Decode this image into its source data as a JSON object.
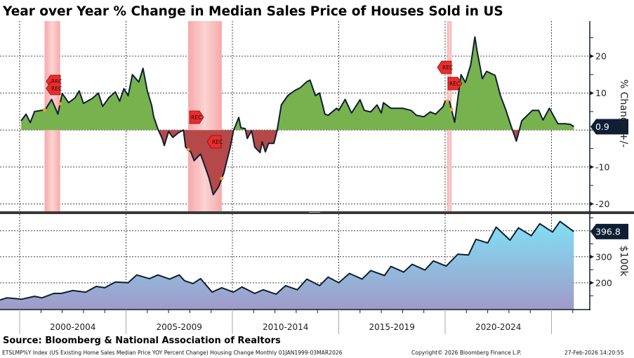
{
  "chart_data": [
    {
      "type": "area",
      "title": "Year over Year % Change in Median Sales Price of Houses Sold in US",
      "ylabel": "% Change +/-",
      "ylim": [
        -22,
        29.5
      ],
      "yticks": [
        -20,
        -10,
        10,
        20
      ],
      "last_value_label": "0.9",
      "positive_color": "#77b24f",
      "negative_color": "#b5494a",
      "line_color": "#0f1e2e",
      "recession_marker_label": "REC",
      "recessions": [
        [
          2001.17,
          2001.9
        ],
        [
          2007.92,
          2009.5
        ],
        [
          2020.1,
          2020.3
        ]
      ],
      "x": [
        2000.07,
        2000.3,
        2000.5,
        2000.7,
        2001.2,
        2001.5,
        2001.8,
        2002.0,
        2002.3,
        2002.6,
        2002.8,
        2003.0,
        2003.4,
        2003.7,
        2003.9,
        2004.2,
        2004.5,
        2004.7,
        2004.9,
        2005.1,
        2005.3,
        2005.6,
        2005.8,
        2006.0,
        2006.2,
        2006.3,
        2006.5,
        2006.7,
        2006.8,
        2007.0,
        2007.2,
        2007.45,
        2007.7,
        2007.8,
        2008.05,
        2008.2,
        2008.5,
        2008.7,
        2008.9,
        2009.1,
        2009.35,
        2009.6,
        2009.9,
        2010.05,
        2010.3,
        2010.4,
        2010.6,
        2010.7,
        2010.9,
        2011.05,
        2011.3,
        2011.4,
        2011.55,
        2011.7,
        2011.95,
        2012.1,
        2012.3,
        2012.6,
        2012.9,
        2013.2,
        2013.5,
        2013.65,
        2013.9,
        2014.1,
        2014.35,
        2014.5,
        2014.9,
        2015.0,
        2015.3,
        2015.6,
        2016.0,
        2016.2,
        2016.5,
        2016.8,
        2017.0,
        2017.1,
        2017.45,
        2018.0,
        2018.4,
        2018.65,
        2019.0,
        2019.3,
        2019.55,
        2019.9,
        2020.0,
        2020.2,
        2020.45,
        2020.6,
        2020.75,
        2020.95,
        2021.2,
        2021.4,
        2021.5,
        2021.75,
        2021.95,
        2022.35,
        2022.6,
        2022.85,
        2023.1,
        2023.35,
        2023.6,
        2024.1,
        2024.4,
        2024.6,
        2024.9,
        2025.3,
        2025.65,
        2025.9,
        2026.05
      ],
      "values": [
        2.5,
        4.3,
        2,
        5,
        5.5,
        8.3,
        4.3,
        9.9,
        7.4,
        8.7,
        10.6,
        7.2,
        8.5,
        10,
        6.4,
        8.8,
        10.3,
        7.8,
        11.2,
        9.3,
        15,
        13,
        16.7,
        10.6,
        6.8,
        3.6,
        0.2,
        -2.3,
        -4.2,
        -0.4,
        -2,
        -0.8,
        0,
        -4.6,
        -6,
        -8.3,
        -6.5,
        -9.7,
        -13,
        -17.5,
        -15.4,
        -11.6,
        -4.6,
        -0.2,
        3.4,
        0.6,
        0.4,
        -2.3,
        -0.2,
        -4.6,
        -6.1,
        -3.2,
        -5.9,
        -3.6,
        -3.6,
        -0.2,
        6.8,
        9.3,
        10.6,
        11.5,
        13.1,
        13.5,
        9.3,
        10,
        4.3,
        4,
        5.9,
        5.3,
        8.3,
        4.6,
        8.2,
        5.3,
        4.9,
        6.8,
        4.6,
        7.4,
        5.9,
        5.9,
        5.3,
        4,
        3.6,
        4.9,
        4.3,
        6.3,
        7.8,
        7.8,
        2.1,
        8.7,
        15,
        12.9,
        17.6,
        25.2,
        21.4,
        13.9,
        15.9,
        14.8,
        9.3,
        5.5,
        1.1,
        -3,
        2.5,
        5.3,
        5.3,
        2.7,
        5.9,
        1.7,
        1.7,
        1.5,
        0.9
      ]
    },
    {
      "type": "area",
      "ylabel": "$100k",
      "ylim": [
        97,
        464
      ],
      "yticks": [
        200,
        300
      ],
      "last_value_label": "396.8",
      "fill_top_color": "#80e0f5",
      "fill_bottom_color": "#a09ac8",
      "x": [
        1999.0,
        1999.4,
        2000.1,
        2000.7,
        2001.05,
        2001.6,
        2001.95,
        2002.5,
        2003.1,
        2003.6,
        2004.0,
        2004.5,
        2005.1,
        2005.5,
        2006.1,
        2006.5,
        2007.05,
        2007.5,
        2007.75,
        2008.15,
        2008.5,
        2009.05,
        2009.5,
        2010.05,
        2010.45,
        2011.05,
        2011.45,
        2012.05,
        2012.5,
        2013.05,
        2013.5,
        2014.1,
        2014.5,
        2015.0,
        2015.5,
        2016.1,
        2016.5,
        2017.15,
        2017.45,
        2018.05,
        2018.45,
        2019.05,
        2019.45,
        2020.05,
        2020.6,
        2021.1,
        2021.45,
        2022.0,
        2022.4,
        2023.05,
        2023.45,
        2024.05,
        2024.45,
        2025.05,
        2025.4,
        2026.05
      ],
      "values": [
        134,
        142,
        137,
        148,
        142,
        159,
        159,
        170,
        164,
        186,
        181,
        203,
        200,
        230,
        216,
        230,
        214,
        230,
        208,
        197,
        216,
        164,
        181,
        164,
        184,
        159,
        173,
        156,
        189,
        173,
        214,
        189,
        222,
        200,
        236,
        214,
        247,
        228,
        263,
        241,
        271,
        249,
        284,
        264,
        310,
        307,
        367,
        353,
        414,
        364,
        411,
        381,
        427,
        395,
        436,
        396.8
      ]
    }
  ],
  "x_axis": {
    "categories": [
      "2000-2004",
      "2005-2009",
      "2010-2014",
      "2015-2019",
      "2020-2024"
    ]
  },
  "footer": {
    "source": "Source: Bloomberg & National Association of Realtors",
    "description": "ETSLMP%Y Index (US Existing Home Sales Median Price YOY Percent Change) Housing Change Monthly 01JAN1999-03MAR2026",
    "copyright": "Copyright© 2026 Bloomberg Finance L.P.",
    "timestamp": "27-Feb-2026 14:20:55"
  }
}
